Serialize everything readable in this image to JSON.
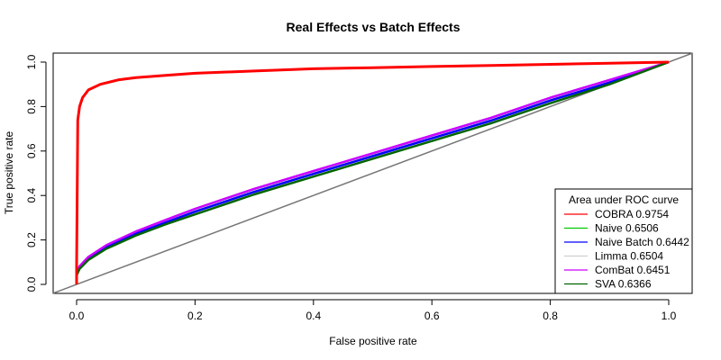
{
  "chart_data": {
    "type": "line",
    "title": "Real Effects vs Batch Effects",
    "xlabel": "False positive rate",
    "ylabel": "True positive rate",
    "xlim": [
      0,
      1
    ],
    "ylim": [
      0,
      1
    ],
    "xticks": [
      "0.0",
      "0.2",
      "0.4",
      "0.6",
      "0.8",
      "1.0"
    ],
    "yticks": [
      "0.0",
      "0.2",
      "0.4",
      "0.6",
      "0.8",
      "1.0"
    ],
    "grid": false,
    "legend": {
      "title": "Area under ROC curve",
      "position": "bottom-right"
    },
    "reference_line": {
      "from": [
        0,
        0
      ],
      "to": [
        1,
        1
      ],
      "color": "#777777"
    },
    "series": [
      {
        "name": "COBRA 0.9754",
        "color": "#ff0000",
        "points": [
          [
            0,
            0
          ],
          [
            0,
            0.08
          ],
          [
            0.002,
            0.74
          ],
          [
            0.005,
            0.8
          ],
          [
            0.01,
            0.84
          ],
          [
            0.02,
            0.875
          ],
          [
            0.04,
            0.9
          ],
          [
            0.07,
            0.92
          ],
          [
            0.1,
            0.93
          ],
          [
            0.15,
            0.94
          ],
          [
            0.2,
            0.95
          ],
          [
            0.3,
            0.96
          ],
          [
            0.4,
            0.97
          ],
          [
            0.5,
            0.975
          ],
          [
            0.6,
            0.98
          ],
          [
            0.7,
            0.985
          ],
          [
            0.8,
            0.99
          ],
          [
            0.9,
            0.995
          ],
          [
            1,
            1
          ]
        ]
      },
      {
        "name": "Naive 0.6506",
        "color": "#00cc00",
        "points": [
          [
            0,
            0
          ],
          [
            0,
            0.05
          ],
          [
            0.005,
            0.08
          ],
          [
            0.02,
            0.12
          ],
          [
            0.05,
            0.17
          ],
          [
            0.1,
            0.23
          ],
          [
            0.15,
            0.28
          ],
          [
            0.2,
            0.33
          ],
          [
            0.3,
            0.42
          ],
          [
            0.4,
            0.5
          ],
          [
            0.5,
            0.58
          ],
          [
            0.6,
            0.66
          ],
          [
            0.7,
            0.74
          ],
          [
            0.8,
            0.83
          ],
          [
            0.9,
            0.91
          ],
          [
            1,
            1
          ]
        ]
      },
      {
        "name": "Naive Batch 0.6442",
        "color": "#0000ff",
        "points": [
          [
            0,
            0
          ],
          [
            0,
            0.05
          ],
          [
            0.005,
            0.078
          ],
          [
            0.02,
            0.118
          ],
          [
            0.05,
            0.168
          ],
          [
            0.1,
            0.228
          ],
          [
            0.15,
            0.278
          ],
          [
            0.2,
            0.327
          ],
          [
            0.3,
            0.416
          ],
          [
            0.4,
            0.497
          ],
          [
            0.5,
            0.577
          ],
          [
            0.6,
            0.657
          ],
          [
            0.7,
            0.737
          ],
          [
            0.8,
            0.827
          ],
          [
            0.9,
            0.908
          ],
          [
            1,
            1
          ]
        ]
      },
      {
        "name": "Limma 0.6504",
        "color": "#d0d0d0",
        "points": [
          [
            0,
            0
          ],
          [
            0,
            0.05
          ],
          [
            0.005,
            0.08
          ],
          [
            0.02,
            0.12
          ],
          [
            0.05,
            0.17
          ],
          [
            0.1,
            0.23
          ],
          [
            0.15,
            0.28
          ],
          [
            0.2,
            0.33
          ],
          [
            0.3,
            0.42
          ],
          [
            0.4,
            0.5
          ],
          [
            0.5,
            0.58
          ],
          [
            0.6,
            0.66
          ],
          [
            0.7,
            0.74
          ],
          [
            0.8,
            0.83
          ],
          [
            0.9,
            0.91
          ],
          [
            1,
            1
          ]
        ]
      },
      {
        "name": "ComBat 0.6451",
        "color": "#cc00ff",
        "points": [
          [
            0,
            0
          ],
          [
            0,
            0.05
          ],
          [
            0.005,
            0.082
          ],
          [
            0.02,
            0.124
          ],
          [
            0.05,
            0.176
          ],
          [
            0.1,
            0.238
          ],
          [
            0.15,
            0.29
          ],
          [
            0.2,
            0.34
          ],
          [
            0.3,
            0.43
          ],
          [
            0.4,
            0.51
          ],
          [
            0.5,
            0.59
          ],
          [
            0.6,
            0.67
          ],
          [
            0.7,
            0.75
          ],
          [
            0.8,
            0.84
          ],
          [
            0.9,
            0.92
          ],
          [
            1,
            1
          ]
        ]
      },
      {
        "name": "SVA 0.6366",
        "color": "#006400",
        "points": [
          [
            0,
            0
          ],
          [
            0,
            0.04
          ],
          [
            0.005,
            0.07
          ],
          [
            0.02,
            0.11
          ],
          [
            0.05,
            0.16
          ],
          [
            0.1,
            0.22
          ],
          [
            0.15,
            0.27
          ],
          [
            0.2,
            0.315
          ],
          [
            0.3,
            0.405
          ],
          [
            0.4,
            0.485
          ],
          [
            0.5,
            0.565
          ],
          [
            0.6,
            0.645
          ],
          [
            0.7,
            0.725
          ],
          [
            0.8,
            0.815
          ],
          [
            0.9,
            0.9
          ],
          [
            1,
            1
          ]
        ]
      }
    ]
  }
}
